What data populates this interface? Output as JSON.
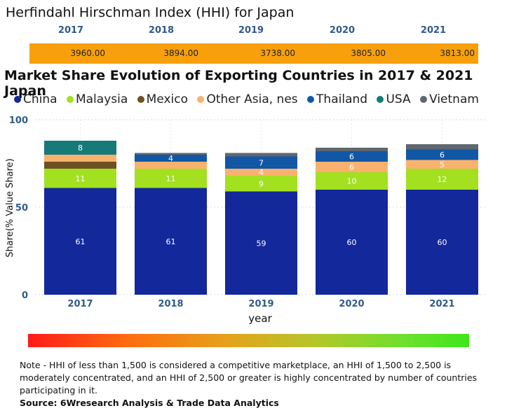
{
  "hhi": {
    "title": "Herfindahl Hirschman Index (HHI) for Japan",
    "years": [
      "2017",
      "2018",
      "2019",
      "2020",
      "2021"
    ],
    "values": [
      "3960.00",
      "3894.00",
      "3738.00",
      "3805.00",
      "3813.00"
    ],
    "bar_color": "#f7a00b"
  },
  "chart_data": {
    "type": "bar",
    "stacked": true,
    "title": "Market Share Evolution of Exporting Countries in 2017 & 2021 Japan",
    "xlabel": "year",
    "ylabel": "Share(% Value Share)",
    "categories": [
      "2017",
      "2018",
      "2019",
      "2020",
      "2021"
    ],
    "ylim": [
      0,
      100
    ],
    "yticks": [
      0,
      50,
      100
    ],
    "grid": true,
    "legend_position": "top",
    "series": [
      {
        "name": "China",
        "color": "#13289a",
        "values": [
          61,
          61,
          59,
          60,
          60
        ],
        "labels": [
          "61",
          "61",
          "59",
          "60",
          "60"
        ]
      },
      {
        "name": "Malaysia",
        "color": "#a2e020",
        "values": [
          11,
          11,
          9,
          10,
          12
        ],
        "labels": [
          "11",
          "11",
          "9",
          "10",
          "12"
        ]
      },
      {
        "name": "Mexico",
        "color": "#6e5122",
        "values": [
          4,
          0,
          0,
          0,
          0
        ],
        "labels": [
          "",
          "",
          "",
          "",
          ""
        ]
      },
      {
        "name": "Other Asia, nes",
        "color": "#f9b26e",
        "values": [
          4,
          4,
          4,
          6,
          5
        ],
        "labels": [
          "",
          "",
          "4",
          "6",
          "5"
        ]
      },
      {
        "name": "Thailand",
        "color": "#1257a6",
        "values": [
          0,
          4,
          7,
          6,
          6
        ],
        "labels": [
          "",
          "4",
          "7",
          "6",
          "6"
        ]
      },
      {
        "name": "USA",
        "color": "#157a78",
        "values": [
          8,
          0,
          0,
          0,
          0
        ],
        "labels": [
          "8",
          "",
          "",
          "",
          ""
        ]
      },
      {
        "name": "Vietnam",
        "color": "#5f6770",
        "values": [
          0,
          1,
          2,
          2,
          3
        ],
        "labels": [
          "",
          "",
          "",
          "",
          ""
        ]
      }
    ]
  },
  "note": "Note - HHI of less than 1,500 is considered a competitive marketplace, an HHI of 1,500 to 2,500 is moderately concentrated, and an HHI of 2,500 or greater is highly concentrated by number of countries participating in it.",
  "source": "Source: 6Wresearch Analysis & Trade Data Analytics"
}
